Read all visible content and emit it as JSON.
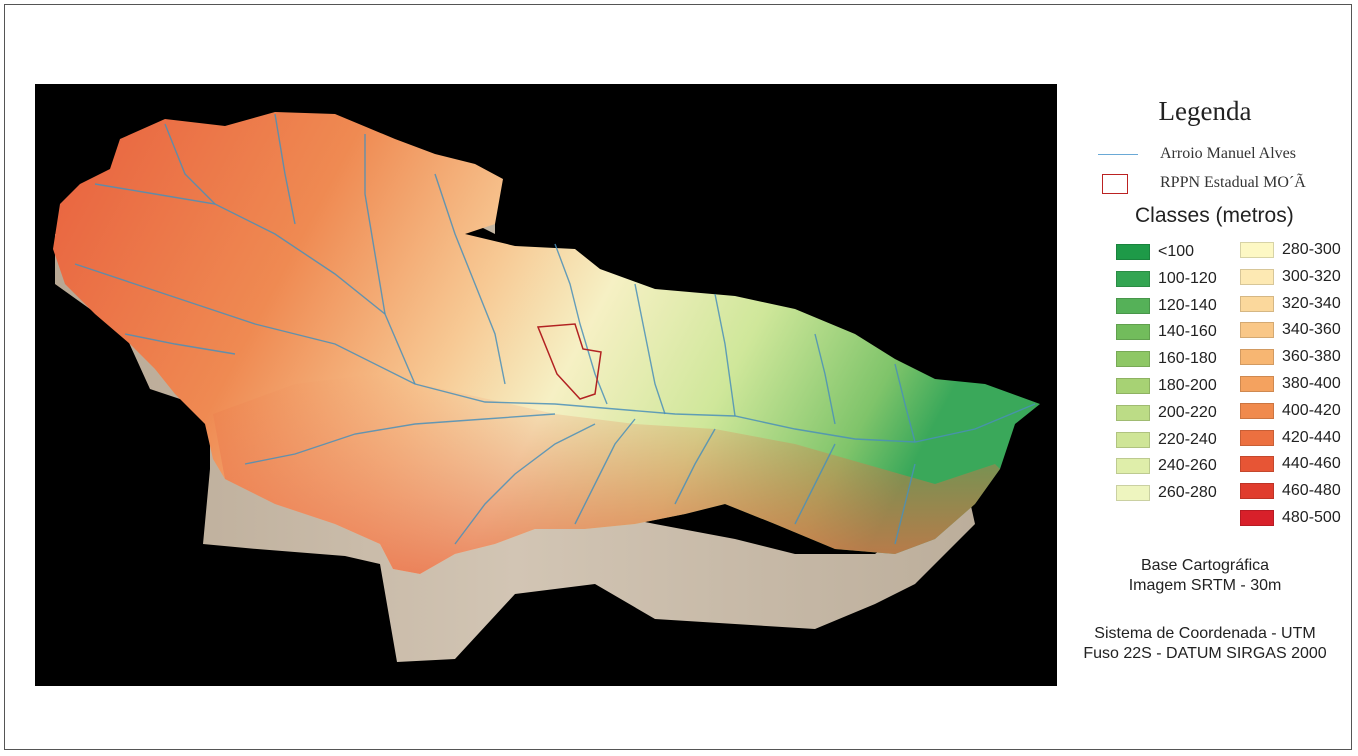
{
  "legend": {
    "title": "Legenda",
    "river_label": "Arroio Manuel Alves",
    "rppn_label": "RPPN Estadual MO´Ã",
    "classes_title": "Classes (metros)",
    "classes_left": [
      {
        "label": "<100",
        "color": "#1e9a48"
      },
      {
        "label": "100-120",
        "color": "#33a552"
      },
      {
        "label": "120-140",
        "color": "#55b158"
      },
      {
        "label": "140-160",
        "color": "#72bc5c"
      },
      {
        "label": "160-180",
        "color": "#8ec765"
      },
      {
        "label": "180-200",
        "color": "#a7d274"
      },
      {
        "label": "200-220",
        "color": "#bcdc86"
      },
      {
        "label": "220-240",
        "color": "#cfe597"
      },
      {
        "label": "240-260",
        "color": "#dfeeaa"
      },
      {
        "label": "260-280",
        "color": "#eef5bf"
      }
    ],
    "classes_right": [
      {
        "label": "280-300",
        "color": "#fdf8c4"
      },
      {
        "label": "300-320",
        "color": "#fde9b3"
      },
      {
        "label": "320-340",
        "color": "#fbd89c"
      },
      {
        "label": "340-360",
        "color": "#f9c787"
      },
      {
        "label": "360-380",
        "color": "#f7b672"
      },
      {
        "label": "380-400",
        "color": "#f4a25f"
      },
      {
        "label": "400-420",
        "color": "#f08a4d"
      },
      {
        "label": "420-440",
        "color": "#ec7040"
      },
      {
        "label": "440-460",
        "color": "#e75535"
      },
      {
        "label": "460-480",
        "color": "#e03c2d"
      },
      {
        "label": "480-500",
        "color": "#d8202a"
      }
    ],
    "base_title": "Base Cartográfica",
    "base_value": "Imagem SRTM - 30m",
    "crs_line1": "Sistema de Coordenada - UTM",
    "crs_line2": "Fuso 22S - DATUM SIRGAS 2000"
  },
  "colors": {
    "river": "#4a8fb8",
    "rppn_border": "#b22222",
    "background": "#000000",
    "walls": "#c8b9a6"
  }
}
